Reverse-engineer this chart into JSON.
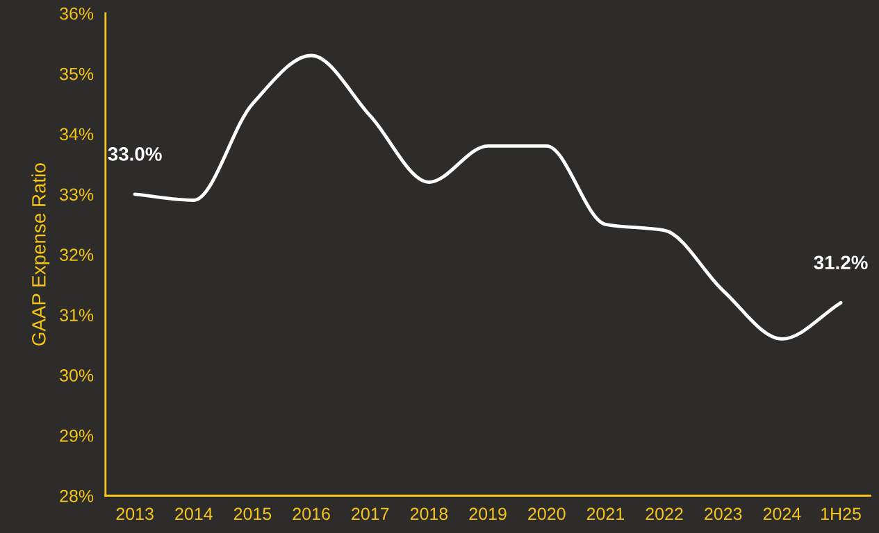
{
  "chart_data": {
    "type": "line",
    "ylabel": "GAAP Expense Ratio",
    "categories": [
      "2013",
      "2014",
      "2015",
      "2016",
      "2017",
      "2018",
      "2019",
      "2020",
      "2021",
      "2022",
      "2023",
      "2024",
      "1H25"
    ],
    "series": [
      {
        "color": "#ffffff",
        "values": [
          33.0,
          32.9,
          34.5,
          35.3,
          34.3,
          33.2,
          33.8,
          33.8,
          32.5,
          32.4,
          31.4,
          30.6,
          31.2
        ],
        "value_labels": [
          "33.0%",
          null,
          null,
          null,
          null,
          null,
          null,
          null,
          null,
          null,
          null,
          null,
          "31.2%"
        ]
      }
    ],
    "ylim": [
      28,
      36
    ],
    "yticks": [
      {
        "value": 28,
        "label": "28%"
      },
      {
        "value": 29,
        "label": "29%"
      },
      {
        "value": 30,
        "label": "30%"
      },
      {
        "value": 31,
        "label": "31%"
      },
      {
        "value": 32,
        "label": "32%"
      },
      {
        "value": 33,
        "label": "33%"
      },
      {
        "value": 34,
        "label": "34%"
      },
      {
        "value": 35,
        "label": "35%"
      },
      {
        "value": 36,
        "label": "36%"
      }
    ],
    "grid": false,
    "legend": false,
    "marker": "none",
    "line_style": "solid"
  }
}
